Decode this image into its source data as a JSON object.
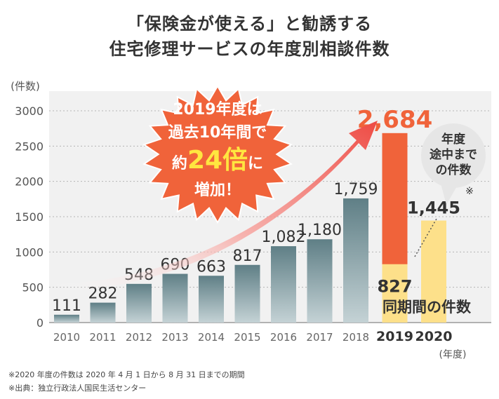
{
  "title_line1": "「保険金が使える」と勧誘する",
  "title_line2": "住宅修理サービスの年度別相談件数",
  "chart_data": {
    "type": "bar",
    "categories": [
      "2010",
      "2011",
      "2012",
      "2013",
      "2014",
      "2015",
      "2016",
      "2017",
      "2018",
      "2019",
      "2020"
    ],
    "values": [
      111,
      282,
      548,
      690,
      663,
      817,
      1082,
      1180,
      1759,
      2684,
      1445
    ],
    "value_labels": [
      "111",
      "282",
      "548",
      "690",
      "663",
      "817",
      "1,082",
      "1,180",
      "1,759",
      "2,684",
      "1,445"
    ],
    "same_period_2019": 827,
    "same_period_2019_label": "827",
    "same_period_label": "同期間の件数",
    "ylim": [
      0,
      3000
    ],
    "yticks": [
      0,
      500,
      1000,
      1500,
      2000,
      2500,
      3000
    ],
    "ylabel": "(件数)",
    "xunit": "(年度)",
    "grid": true,
    "note_2020_mark": "※",
    "colors": {
      "bar_top": "#5f7f86",
      "bar_bottom": "#c4d2d5",
      "bar_2019": "#f0633a",
      "bar_same_period": "#fde08a",
      "bar_2020": "#fde08a",
      "label_2019": "#f0633a"
    }
  },
  "burst": {
    "line1": "2019年度は",
    "line2": "過去10年間で",
    "line3_a": "約",
    "line3_b": "24倍",
    "line3_c": "に",
    "line4": "増加！"
  },
  "bubble": {
    "line1": "年度",
    "line2": "途中まで",
    "line3": "の件数"
  },
  "footnote1": "※2020 年度の件数は 2020 年 4 月 1 日から 8 月 31 日までの期間",
  "footnote2": "※出典：独立行政法人国民生活センター"
}
